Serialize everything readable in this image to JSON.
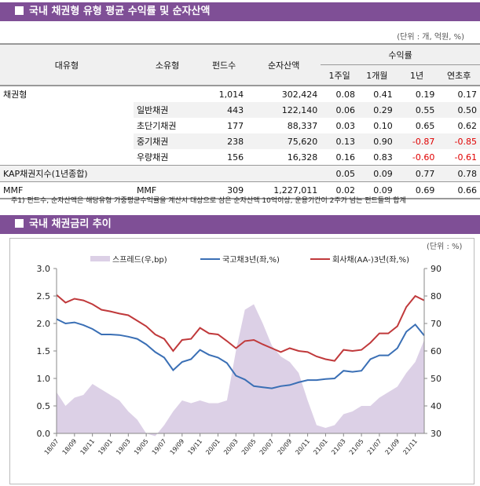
{
  "section1": {
    "title": "국내 채권형 유형 평균 수익률 및 순자산액",
    "unit": "(단위 : 개, 억원, %)",
    "headers": {
      "major": "대유형",
      "minor": "소유형",
      "funds": "펀드수",
      "assets": "순자산액",
      "returns": "수익률",
      "w1": "1주일",
      "m1": "1개월",
      "y1": "1년",
      "ytd": "연초후"
    },
    "rows": [
      {
        "major": "채권형",
        "minor": "",
        "funds": "1,014",
        "assets": "302,424",
        "w1": "0.08",
        "m1": "0.41",
        "y1": "0.19",
        "ytd": "0.17"
      },
      {
        "major": "",
        "minor": "일반채권",
        "funds": "443",
        "assets": "122,140",
        "w1": "0.06",
        "m1": "0.29",
        "y1": "0.55",
        "ytd": "0.50"
      },
      {
        "major": "",
        "minor": "초단기채권",
        "funds": "177",
        "assets": "88,337",
        "w1": "0.03",
        "m1": "0.10",
        "y1": "0.65",
        "ytd": "0.62"
      },
      {
        "major": "",
        "minor": "중기채권",
        "funds": "238",
        "assets": "75,620",
        "w1": "0.13",
        "m1": "0.90",
        "y1": "-0.87",
        "ytd": "-0.85"
      },
      {
        "major": "",
        "minor": "우량채권",
        "funds": "156",
        "assets": "16,328",
        "w1": "0.16",
        "m1": "0.83",
        "y1": "-0.60",
        "ytd": "-0.61"
      },
      {
        "major": "KAP채권지수(1년종합)",
        "minor": "",
        "funds": "",
        "assets": "",
        "w1": "0.05",
        "m1": "0.09",
        "y1": "0.77",
        "ytd": "0.78"
      },
      {
        "major": "MMF",
        "minor": "MMF",
        "funds": "309",
        "assets": "1,227,011",
        "w1": "0.02",
        "m1": "0.09",
        "y1": "0.69",
        "ytd": "0.66"
      }
    ],
    "note": "주1) 펀드수, 순자산액은 해당유형 가중평균수익률을 계산시 대상으로 삼은 순자산액 10억이상, 운용기간이 2주가 넘는 펀드들의 합계"
  },
  "section2": {
    "title": "국내 채권금리 추이",
    "unit": "(단위 : %)"
  },
  "chart_data": {
    "type": "line+area",
    "x": [
      "18/07",
      "18/08",
      "18/09",
      "18/10",
      "18/11",
      "18/12",
      "19/01",
      "19/02",
      "19/03",
      "19/04",
      "19/05",
      "19/06",
      "19/07",
      "19/08",
      "19/09",
      "19/10",
      "19/11",
      "19/12",
      "20/01",
      "20/02",
      "20/03",
      "20/04",
      "20/05",
      "20/06",
      "20/07",
      "20/08",
      "20/09",
      "20/10",
      "20/11",
      "20/12",
      "21/01",
      "21/02",
      "21/03",
      "21/04",
      "21/05",
      "21/06",
      "21/07",
      "21/08",
      "21/09",
      "21/10",
      "21/11",
      "21/12"
    ],
    "xticks": [
      "18/07",
      "18/09",
      "18/11",
      "19/01",
      "19/03",
      "19/05",
      "19/07",
      "19/09",
      "19/11",
      "20/01",
      "20/03",
      "20/05",
      "20/07",
      "20/09",
      "20/11",
      "21/01",
      "21/03",
      "21/05",
      "21/07",
      "21/09",
      "21/11"
    ],
    "yleft": {
      "range": [
        0,
        3
      ],
      "ticks": [
        "0.0",
        "0.5",
        "1.0",
        "1.5",
        "2.0",
        "2.5",
        "3.0"
      ]
    },
    "yright": {
      "range": [
        30,
        90
      ],
      "ticks": [
        "30",
        "40",
        "50",
        "60",
        "70",
        "80",
        "90"
      ]
    },
    "legend": "top",
    "series": [
      {
        "name": "스프레드(우,bp)",
        "axis": "right",
        "kind": "area",
        "color": "#dcd0e6",
        "values": [
          45,
          40,
          43,
          44,
          48,
          46,
          44,
          42,
          38,
          35,
          30,
          29,
          33,
          38,
          42,
          41,
          42,
          41,
          41,
          42,
          60,
          75,
          77,
          70,
          62,
          58,
          56,
          52,
          42,
          33,
          32,
          33,
          37,
          38,
          40,
          40,
          43,
          45,
          47,
          52,
          56,
          64
        ]
      },
      {
        "name": "국고채3년(좌,%)",
        "axis": "left",
        "kind": "line",
        "color": "#3a6fb5",
        "values": [
          2.08,
          2.0,
          2.02,
          1.97,
          1.9,
          1.8,
          1.8,
          1.79,
          1.76,
          1.72,
          1.62,
          1.48,
          1.38,
          1.15,
          1.3,
          1.35,
          1.52,
          1.43,
          1.38,
          1.28,
          1.05,
          0.98,
          0.86,
          0.84,
          0.82,
          0.86,
          0.88,
          0.93,
          0.97,
          0.97,
          0.99,
          1.0,
          1.14,
          1.12,
          1.14,
          1.35,
          1.42,
          1.42,
          1.55,
          1.85,
          1.98,
          1.78
        ]
      },
      {
        "name": "회사채(AA-)3년(좌,%)",
        "axis": "left",
        "kind": "line",
        "color": "#c0393b",
        "values": [
          2.52,
          2.38,
          2.45,
          2.42,
          2.35,
          2.25,
          2.22,
          2.18,
          2.15,
          2.05,
          1.95,
          1.8,
          1.72,
          1.5,
          1.7,
          1.72,
          1.92,
          1.82,
          1.8,
          1.68,
          1.55,
          1.68,
          1.7,
          1.62,
          1.55,
          1.48,
          1.55,
          1.5,
          1.48,
          1.4,
          1.35,
          1.32,
          1.52,
          1.5,
          1.52,
          1.65,
          1.82,
          1.82,
          1.95,
          2.3,
          2.5,
          2.42
        ]
      }
    ]
  }
}
